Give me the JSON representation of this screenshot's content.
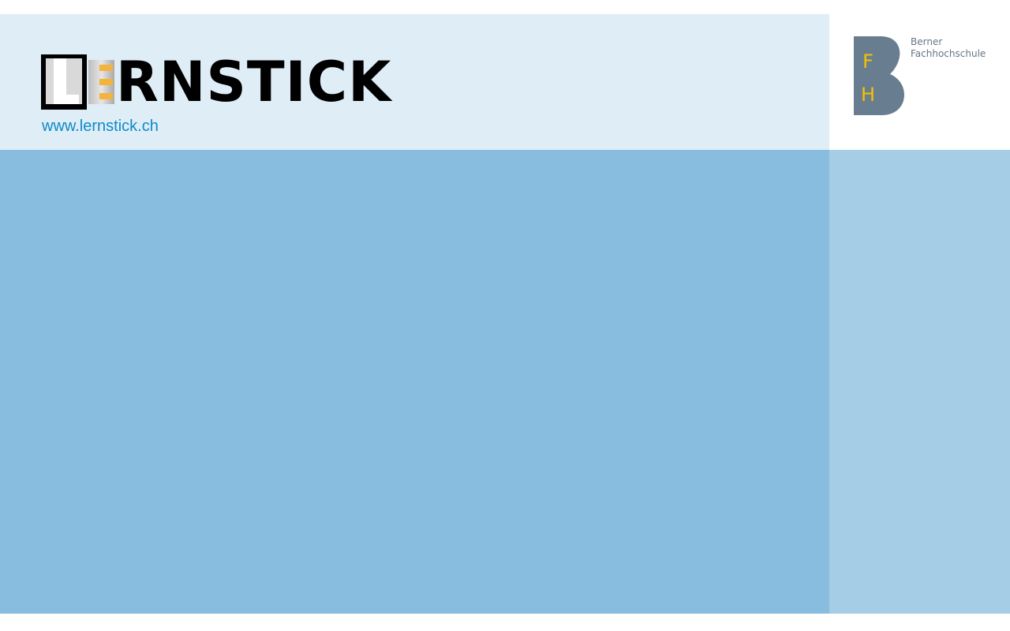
{
  "header": {
    "logo_text": "RNSTICK",
    "site_link": "www.lernstick.ch"
  },
  "institution": {
    "line1": "Berner",
    "line2": "Fachhochschule",
    "logo_letters": [
      "F",
      "H"
    ]
  },
  "colors": {
    "header_bg": "#deedf6",
    "main_bg": "#89bde0",
    "side_bg": "#a5cde6",
    "link": "#0e8ac9",
    "bfh_slate": "#697d91",
    "bfh_yellow": "#f5c200"
  },
  "icons": {
    "lernstick_logo": "usb-stick-logo",
    "bfh_logo": "bfh-b-logo"
  }
}
